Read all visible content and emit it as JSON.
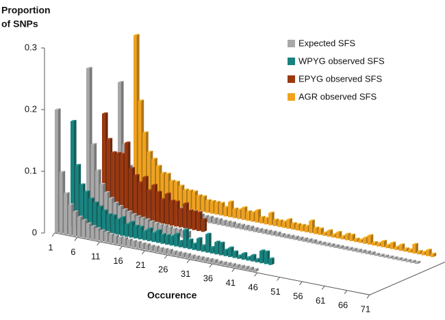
{
  "chart_data": {
    "type": "bar3d",
    "y_label": [
      "Proportion",
      "of SNPs"
    ],
    "x_label": "Occurence",
    "ylim": [
      0,
      0.3
    ],
    "yticks": [
      0,
      0.1,
      0.2,
      0.3
    ],
    "xlim": [
      1,
      71
    ],
    "xticks": [
      1,
      6,
      11,
      16,
      21,
      26,
      31,
      36,
      41,
      46,
      51,
      56,
      61,
      66,
      71
    ],
    "series": [
      {
        "name": "Expected SFS",
        "color": "#a8a8a8",
        "values": [
          [
            0.2,
            0.1,
            0.067,
            0.05,
            0.04,
            0.033,
            0.029,
            0.025,
            0.022,
            0.02,
            0.018,
            0.017,
            0.015,
            0.014,
            0.013,
            0.013,
            0.012,
            0.011,
            0.011,
            0.01,
            0.01,
            0.009,
            0.009,
            0.008,
            0.008,
            0.008,
            0.007,
            0.007,
            0.007,
            0.007,
            0.006,
            0.006,
            0.006,
            0.006,
            0.006,
            0.006,
            0.005,
            0.005,
            0.005,
            0.005,
            0.005,
            0.005,
            0.005,
            0.005,
            0.004
          ],
          [
            0.245,
            0.123,
            0.082,
            0.061,
            0.049,
            0.041,
            0.035,
            0.031,
            0.027,
            0.025,
            0.022,
            0.02,
            0.019,
            0.018,
            0.016,
            0.015,
            0.014,
            0.014,
            0.013,
            0.012,
            0.012,
            0.011,
            0.011
          ],
          [
            0.2,
            0.1,
            0.067,
            0.05,
            0.04,
            0.033,
            0.029,
            0.025,
            0.022,
            0.02,
            0.018,
            0.017,
            0.015,
            0.014,
            0.013,
            0.013,
            0.012,
            0.011,
            0.011,
            0.01,
            0.01,
            0.009,
            0.009,
            0.008,
            0.008,
            0.008,
            0.007,
            0.007,
            0.007,
            0.007,
            0.006,
            0.006,
            0.006,
            0.006,
            0.006,
            0.006,
            0.005,
            0.005,
            0.005,
            0.005,
            0.005,
            0.005,
            0.005,
            0.005,
            0.004,
            0.004,
            0.004,
            0.004,
            0.004,
            0.004,
            0.004,
            0.004,
            0.004,
            0.004,
            0.004,
            0.004,
            0.004,
            0.003,
            0.003,
            0.003,
            0.003,
            0.003,
            0.003,
            0.003,
            0.003,
            0.003,
            0.003
          ]
        ]
      },
      {
        "name": "WPYG observed SFS",
        "color": "#17837f",
        "values": [
          0.17,
          0.1,
          0.07,
          0.06,
          0.05,
          0.045,
          0.04,
          0.035,
          0.03,
          0.03,
          0.025,
          0.03,
          0.02,
          0.025,
          0.02,
          0.02,
          0.015,
          0.02,
          0.015,
          0.02,
          0.015,
          0.015,
          0.015,
          0.02,
          0.01,
          0.03,
          0.015,
          0.01,
          0.02,
          0.01,
          0.03,
          0.01,
          0.02,
          0.02,
          0.01,
          0.015,
          0.01,
          0.005,
          0.01,
          0.005,
          0.01,
          0.005,
          0.02,
          0.02,
          0.01
        ]
      },
      {
        "name": "EPYG observed SFS",
        "color": "#9a3810",
        "values": [
          0.16,
          0.12,
          0.1,
          0.1,
          0.1,
          0.12,
          0.08,
          0.07,
          0.06,
          0.07,
          0.05,
          0.06,
          0.05,
          0.04,
          0.05,
          0.04,
          0.04,
          0.03,
          0.04,
          0.03,
          0.03,
          0.03,
          0.02
        ]
      },
      {
        "name": "AGR observed SFS",
        "color": "#f0a21e",
        "values": [
          0.265,
          0.16,
          0.11,
          0.08,
          0.07,
          0.06,
          0.05,
          0.05,
          0.04,
          0.04,
          0.035,
          0.03,
          0.03,
          0.03,
          0.025,
          0.025,
          0.02,
          0.02,
          0.02,
          0.02,
          0.015,
          0.025,
          0.015,
          0.015,
          0.02,
          0.015,
          0.015,
          0.02,
          0.01,
          0.01,
          0.02,
          0.01,
          0.01,
          0.01,
          0.015,
          0.01,
          0.01,
          0.01,
          0.01,
          0.02,
          0.01,
          0.01,
          0.005,
          0.01,
          0.005,
          0.01,
          0.005,
          0.01,
          0.01,
          0.005,
          0.005,
          0.01,
          0.015,
          0.005,
          0.005,
          0.01,
          0.005,
          0.01,
          0.005,
          0.01,
          0.005,
          0.005,
          0.015,
          0.005,
          0.005,
          0.01,
          0.005
        ]
      }
    ]
  }
}
